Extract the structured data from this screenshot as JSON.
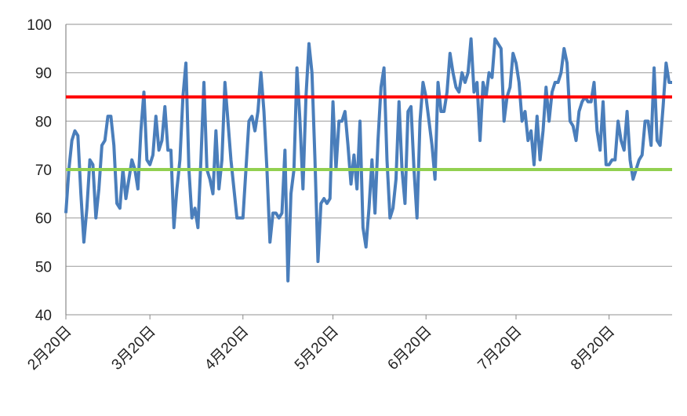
{
  "chart_data": {
    "type": "line",
    "categories": [
      "2月20日",
      null,
      null,
      null,
      null,
      null,
      null,
      null,
      null,
      null,
      null,
      null,
      null,
      null,
      null,
      null,
      null,
      null,
      null,
      null,
      null,
      null,
      null,
      null,
      null,
      null,
      null,
      null,
      "3月20日",
      null,
      null,
      null,
      null,
      null,
      null,
      null,
      null,
      null,
      null,
      null,
      null,
      null,
      null,
      null,
      null,
      null,
      null,
      null,
      null,
      null,
      null,
      null,
      null,
      null,
      null,
      null,
      null,
      null,
      null,
      "4月20日",
      null,
      null,
      null,
      null,
      null,
      null,
      null,
      null,
      null,
      null,
      null,
      null,
      null,
      null,
      null,
      null,
      null,
      null,
      null,
      null,
      null,
      null,
      null,
      null,
      null,
      null,
      null,
      null,
      null,
      "5月20日",
      null,
      null,
      null,
      null,
      null,
      null,
      null,
      null,
      null,
      null,
      null,
      null,
      null,
      null,
      null,
      null,
      null,
      null,
      null,
      null,
      null,
      null,
      null,
      null,
      null,
      null,
      null,
      null,
      null,
      null,
      "6月20日",
      null,
      null,
      null,
      null,
      null,
      null,
      null,
      null,
      null,
      null,
      null,
      null,
      null,
      null,
      null,
      null,
      null,
      null,
      null,
      null,
      null,
      null,
      null,
      null,
      null,
      null,
      null,
      null,
      null,
      "7月20日",
      null,
      null,
      null,
      null,
      null,
      null,
      null,
      null,
      null,
      null,
      null,
      null,
      null,
      null,
      null,
      null,
      null,
      null,
      null,
      null,
      null,
      null,
      null,
      null,
      null,
      null,
      null,
      null,
      null,
      null,
      "8月20日",
      null,
      null,
      null,
      null,
      null,
      null,
      null,
      null,
      null,
      null,
      null,
      null,
      null,
      null,
      null,
      null,
      null,
      null,
      null,
      null,
      null
    ],
    "series": [
      {
        "color": "#4a7ebb",
        "values": [
          61,
          70,
          76,
          78,
          77,
          65,
          55,
          62,
          72,
          71,
          60,
          66,
          75,
          76,
          81,
          81,
          75,
          63,
          62,
          70,
          64,
          68,
          72,
          70,
          66,
          78,
          86,
          72,
          71,
          73,
          81,
          74,
          76,
          83,
          74,
          74,
          58,
          66,
          72,
          85,
          92,
          70,
          60,
          62,
          58,
          72,
          88,
          70,
          68,
          65,
          78,
          66,
          72,
          88,
          80,
          72,
          66,
          60,
          60,
          60,
          70,
          80,
          81,
          78,
          82,
          90,
          82,
          70,
          55,
          61,
          61,
          60,
          61,
          74,
          47,
          65,
          70,
          91,
          80,
          66,
          85,
          96,
          90,
          72,
          51,
          63,
          64,
          63,
          64,
          84,
          70,
          80,
          80,
          82,
          75,
          67,
          73,
          66,
          80,
          58,
          54,
          62,
          72,
          61,
          76,
          87,
          91,
          72,
          60,
          62,
          68,
          84,
          70,
          63,
          82,
          83,
          70,
          60,
          80,
          88,
          85,
          80,
          75,
          68,
          88,
          82,
          82,
          86,
          94,
          90,
          87,
          86,
          90,
          88,
          90,
          97,
          86,
          88,
          76,
          88,
          85,
          90,
          89,
          97,
          96,
          95,
          80,
          85,
          87,
          94,
          92,
          88,
          80,
          82,
          76,
          78,
          71,
          81,
          72,
          78,
          87,
          80,
          86,
          88,
          88,
          90,
          95,
          92,
          80,
          79,
          76,
          82,
          84,
          85,
          84,
          84,
          88,
          78,
          74,
          84,
          71,
          71,
          72,
          72,
          80,
          76,
          74,
          82,
          72,
          68,
          70,
          72,
          73,
          80,
          80,
          75,
          91,
          76,
          75,
          83,
          92,
          88,
          88
        ]
      }
    ],
    "reference_lines": [
      {
        "value": 85,
        "color": "#ff0000"
      },
      {
        "value": 70,
        "color": "#92d050"
      }
    ],
    "ylim": [
      40,
      100
    ],
    "yticks": [
      40,
      50,
      60,
      70,
      80,
      90,
      100
    ],
    "grid": true
  }
}
